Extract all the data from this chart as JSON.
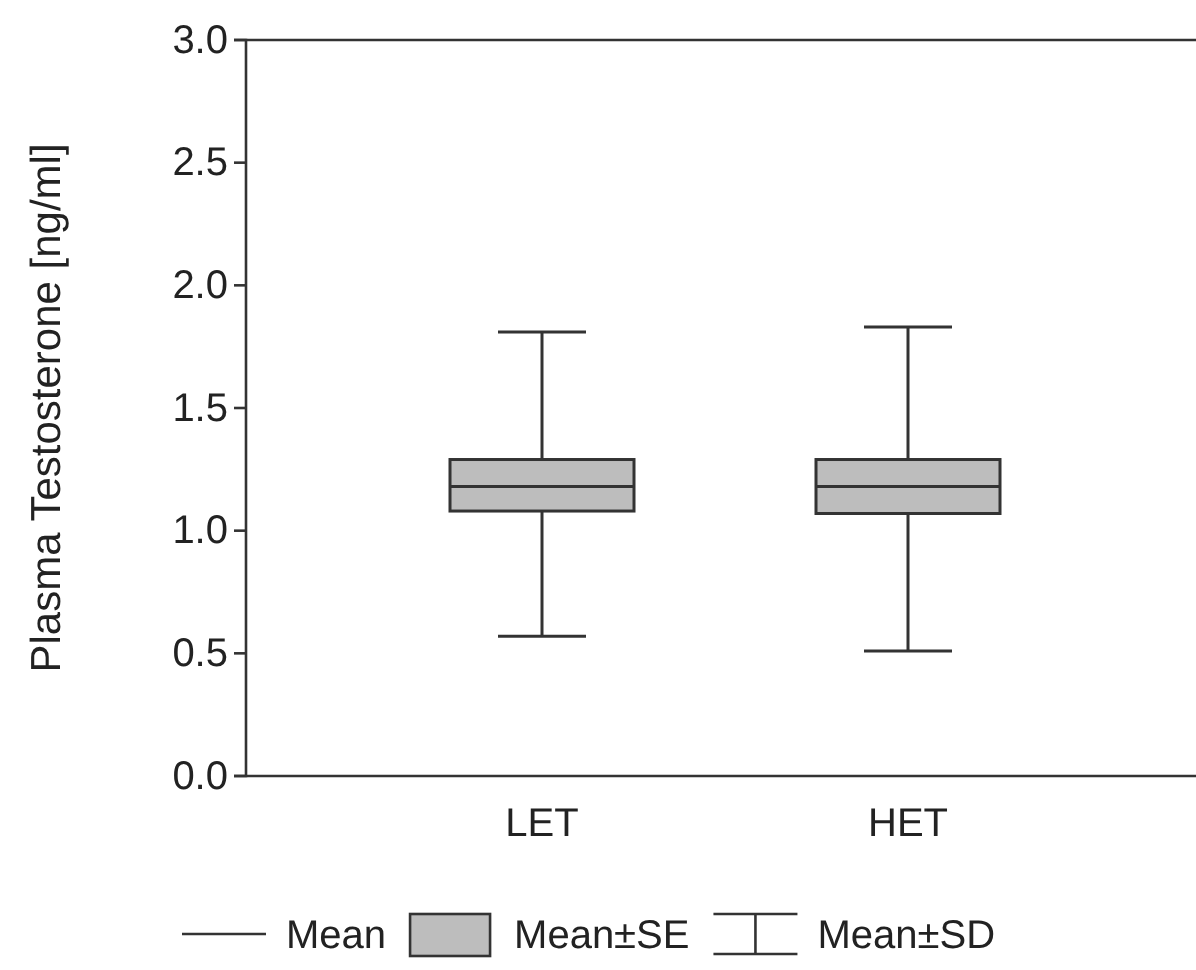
{
  "chart_data": {
    "type": "box",
    "ylabel": "Plasma Testosterone [ng/ml]",
    "categories": [
      "LET",
      "HET"
    ],
    "boxes": [
      {
        "low": 0.57,
        "q1": 1.08,
        "median": 1.18,
        "q3": 1.29,
        "high": 1.81
      },
      {
        "low": 0.51,
        "q1": 1.07,
        "median": 1.18,
        "q3": 1.29,
        "high": 1.83
      }
    ],
    "color": "#bdbdbd",
    "ylim": [
      0,
      3
    ],
    "yticks": [
      {
        "value": 0,
        "label": "0.0"
      },
      {
        "value": 0.5,
        "label": "0.5"
      },
      {
        "value": 1,
        "label": "1.0"
      },
      {
        "value": 1.5,
        "label": "1.5"
      },
      {
        "value": 2,
        "label": "2.0"
      },
      {
        "value": 2.5,
        "label": "2.5"
      },
      {
        "value": 3,
        "label": "3.0"
      }
    ],
    "annotations": [
      "Mean",
      "Mean±SE",
      "Mean±SD"
    ]
  }
}
